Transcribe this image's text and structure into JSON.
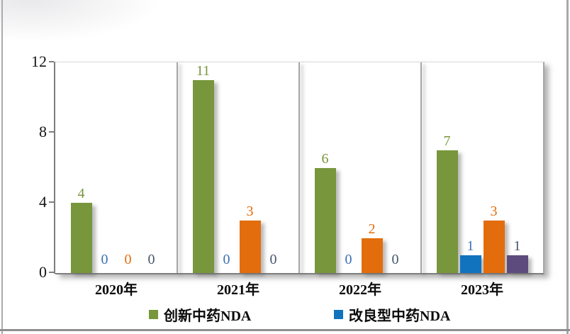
{
  "page": {
    "background": "#ffffff",
    "border_color": "#9b9b9d"
  },
  "chart_data": {
    "type": "bar",
    "categories": [
      "2020年",
      "2021年",
      "2022年",
      "2023年"
    ],
    "series": [
      {
        "name": "创新中药NDA",
        "color": "#78963C",
        "label_color": "#78963C",
        "values": [
          4,
          11,
          6,
          7
        ]
      },
      {
        "name": "改良型中药NDA",
        "color": "#1173BE",
        "label_color": "#3A6FB5",
        "values": [
          0,
          0,
          0,
          1
        ]
      },
      {
        "name": "",
        "color": "#E36D0C",
        "label_color": "#E36D0C",
        "values": [
          0,
          3,
          2,
          3
        ]
      },
      {
        "name": "",
        "color": "#5E4B7D",
        "label_color": "#44546A",
        "values": [
          0,
          0,
          0,
          1
        ]
      }
    ],
    "title": "",
    "xlabel": "",
    "ylabel": "",
    "ylim": [
      0,
      12
    ],
    "yticks": [
      0,
      4,
      8,
      12
    ],
    "ytick_labels": [
      "0",
      "4",
      "8",
      "12"
    ],
    "data_labels_shown": true,
    "grid": "vertical-category-separators",
    "legend_position": "bottom",
    "legend": [
      {
        "label": "创新中药NDA",
        "color": "#78963C"
      },
      {
        "label": "改良型中药NDA",
        "color": "#1173BE"
      }
    ],
    "axis_color": "#7f7f7f",
    "separator_color": "#a6a6a6"
  }
}
